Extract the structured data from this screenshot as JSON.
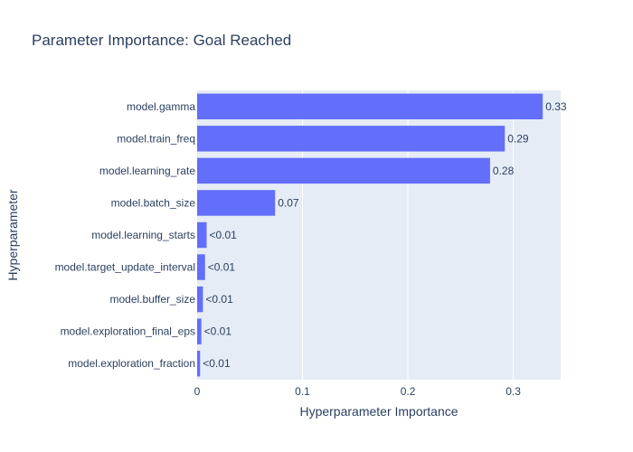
{
  "chart_data": {
    "type": "bar",
    "orientation": "horizontal",
    "title": "Parameter Importance: Goal Reached",
    "xlabel": "Hyperparameter Importance",
    "ylabel": "Hyperparameter",
    "xlim": [
      0,
      0.345
    ],
    "xticks": [
      0,
      0.1,
      0.2,
      0.3
    ],
    "xtick_labels": [
      "0",
      "0.1",
      "0.2",
      "0.3"
    ],
    "grid": true,
    "bar_color": "#636efa",
    "plot_bg": "#e5ecf6",
    "categories": [
      "model.gamma",
      "model.train_freq",
      "model.learning_rate",
      "model.batch_size",
      "model.learning_starts",
      "model.target_update_interval",
      "model.buffer_size",
      "model.exploration_final_eps",
      "model.exploration_fraction"
    ],
    "values": [
      0.328,
      0.292,
      0.278,
      0.074,
      0.009,
      0.0075,
      0.0055,
      0.004,
      0.0028
    ],
    "labels": [
      "0.33",
      "0.29",
      "0.28",
      "0.07",
      "<0.01",
      "<0.01",
      "<0.01",
      "<0.01",
      "<0.01"
    ]
  }
}
